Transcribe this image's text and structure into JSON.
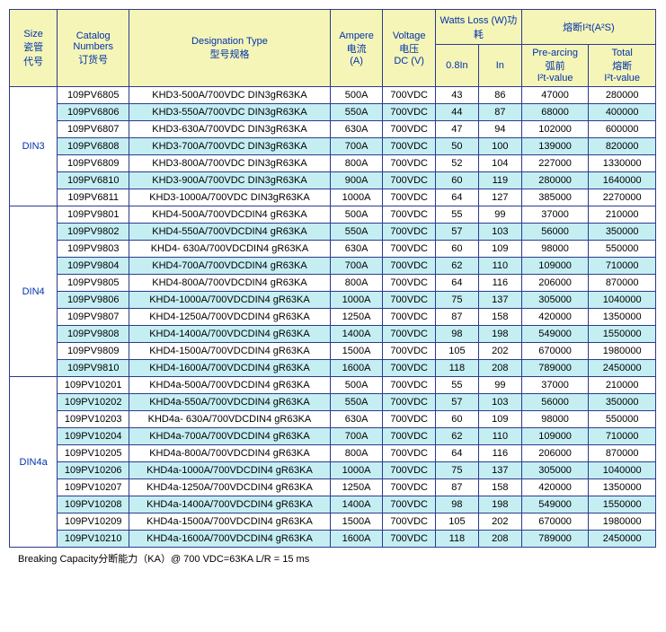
{
  "header": {
    "size": {
      "l1": "Size",
      "l2": "瓷管",
      "l3": "代号"
    },
    "catalog": {
      "l1": "Catalog",
      "l2": "Numbers",
      "l3": "订货号"
    },
    "designation": {
      "l1": "Designation Type",
      "l2": "型号规格"
    },
    "ampere": {
      "l1": "Ampere",
      "l2": "电流",
      "l3": "(A)"
    },
    "voltage": {
      "l1": "Voltage",
      "l2": "电压",
      "l3": "DC (V)"
    },
    "watts": {
      "group": "Watts Loss (W)功耗",
      "c1": "0.8In",
      "c2": "In"
    },
    "i2t": {
      "group": "熔断I²t(A²S)",
      "c1a": "Pre-arcing",
      "c1b": "弧前",
      "c1c": "I²t-value",
      "c2a": "Total",
      "c2b": "熔断",
      "c2c": "I²t-value"
    }
  },
  "groups": [
    {
      "size": "DIN3",
      "rows": [
        {
          "cat": "109PV6805",
          "des": "KHD3-500A/700VDC DIN3gR63KA",
          "amp": "500A",
          "volt": "700VDC",
          "w1": "43",
          "w2": "86",
          "i1": "47000",
          "i2": "280000"
        },
        {
          "cat": "109PV6806",
          "des": "KHD3-550A/700VDC DIN3gR63KA",
          "amp": "550A",
          "volt": "700VDC",
          "w1": "44",
          "w2": "87",
          "i1": "68000",
          "i2": "400000"
        },
        {
          "cat": "109PV6807",
          "des": "KHD3-630A/700VDC DIN3gR63KA",
          "amp": "630A",
          "volt": "700VDC",
          "w1": "47",
          "w2": "94",
          "i1": "102000",
          "i2": "600000"
        },
        {
          "cat": "109PV6808",
          "des": "KHD3-700A/700VDC DIN3gR63KA",
          "amp": "700A",
          "volt": "700VDC",
          "w1": "50",
          "w2": "100",
          "i1": "139000",
          "i2": "820000"
        },
        {
          "cat": "109PV6809",
          "des": "KHD3-800A/700VDC DIN3gR63KA",
          "amp": "800A",
          "volt": "700VDC",
          "w1": "52",
          "w2": "104",
          "i1": "227000",
          "i2": "1330000"
        },
        {
          "cat": "109PV6810",
          "des": "KHD3-900A/700VDC DIN3gR63KA",
          "amp": "900A",
          "volt": "700VDC",
          "w1": "60",
          "w2": "119",
          "i1": "280000",
          "i2": "1640000"
        },
        {
          "cat": "109PV6811",
          "des": "KHD3-1000A/700VDC DIN3gR63KA",
          "amp": "1000A",
          "volt": "700VDC",
          "w1": "64",
          "w2": "127",
          "i1": "385000",
          "i2": "2270000"
        }
      ]
    },
    {
      "size": "DIN4",
      "rows": [
        {
          "cat": "109PV9801",
          "des": "KHD4-500A/700VDCDIN4 gR63KA",
          "amp": "500A",
          "volt": "700VDC",
          "w1": "55",
          "w2": "99",
          "i1": "37000",
          "i2": "210000"
        },
        {
          "cat": "109PV9802",
          "des": "KHD4-550A/700VDCDIN4 gR63KA",
          "amp": "550A",
          "volt": "700VDC",
          "w1": "57",
          "w2": "103",
          "i1": "56000",
          "i2": "350000"
        },
        {
          "cat": "109PV9803",
          "des": "KHD4- 630A/700VDCDIN4 gR63KA",
          "amp": "630A",
          "volt": "700VDC",
          "w1": "60",
          "w2": "109",
          "i1": "98000",
          "i2": "550000"
        },
        {
          "cat": "109PV9804",
          "des": "KHD4-700A/700VDCDIN4 gR63KA",
          "amp": "700A",
          "volt": "700VDC",
          "w1": "62",
          "w2": "110",
          "i1": "109000",
          "i2": "710000"
        },
        {
          "cat": "109PV9805",
          "des": "KHD4-800A/700VDCDIN4 gR63KA",
          "amp": "800A",
          "volt": "700VDC",
          "w1": "64",
          "w2": "116",
          "i1": "206000",
          "i2": "870000"
        },
        {
          "cat": "109PV9806",
          "des": "KHD4-1000A/700VDCDIN4 gR63KA",
          "amp": "1000A",
          "volt": "700VDC",
          "w1": "75",
          "w2": "137",
          "i1": "305000",
          "i2": "1040000"
        },
        {
          "cat": "109PV9807",
          "des": "KHD4-1250A/700VDCDIN4 gR63KA",
          "amp": "1250A",
          "volt": "700VDC",
          "w1": "87",
          "w2": "158",
          "i1": "420000",
          "i2": "1350000"
        },
        {
          "cat": "109PV9808",
          "des": "KHD4-1400A/700VDCDIN4 gR63KA",
          "amp": "1400A",
          "volt": "700VDC",
          "w1": "98",
          "w2": "198",
          "i1": "549000",
          "i2": "1550000"
        },
        {
          "cat": "109PV9809",
          "des": "KHD4-1500A/700VDCDIN4 gR63KA",
          "amp": "1500A",
          "volt": "700VDC",
          "w1": "105",
          "w2": "202",
          "i1": "670000",
          "i2": "1980000"
        },
        {
          "cat": "109PV9810",
          "des": "KHD4-1600A/700VDCDIN4 gR63KA",
          "amp": "1600A",
          "volt": "700VDC",
          "w1": "118",
          "w2": "208",
          "i1": "789000",
          "i2": "2450000"
        }
      ]
    },
    {
      "size": "DIN4a",
      "rows": [
        {
          "cat": "109PV10201",
          "des": "KHD4a-500A/700VDCDIN4 gR63KA",
          "amp": "500A",
          "volt": "700VDC",
          "w1": "55",
          "w2": "99",
          "i1": "37000",
          "i2": "210000"
        },
        {
          "cat": "109PV10202",
          "des": "KHD4a-550A/700VDCDIN4 gR63KA",
          "amp": "550A",
          "volt": "700VDC",
          "w1": "57",
          "w2": "103",
          "i1": "56000",
          "i2": "350000"
        },
        {
          "cat": "109PV10203",
          "des": "KHD4a- 630A/700VDCDIN4 gR63KA",
          "amp": "630A",
          "volt": "700VDC",
          "w1": "60",
          "w2": "109",
          "i1": "98000",
          "i2": "550000"
        },
        {
          "cat": "109PV10204",
          "des": "KHD4a-700A/700VDCDIN4 gR63KA",
          "amp": "700A",
          "volt": "700VDC",
          "w1": "62",
          "w2": "110",
          "i1": "109000",
          "i2": "710000"
        },
        {
          "cat": "109PV10205",
          "des": "KHD4a-800A/700VDCDIN4 gR63KA",
          "amp": "800A",
          "volt": "700VDC",
          "w1": "64",
          "w2": "116",
          "i1": "206000",
          "i2": "870000"
        },
        {
          "cat": "109PV10206",
          "des": "KHD4a-1000A/700VDCDIN4 gR63KA",
          "amp": "1000A",
          "volt": "700VDC",
          "w1": "75",
          "w2": "137",
          "i1": "305000",
          "i2": "1040000"
        },
        {
          "cat": "109PV10207",
          "des": "KHD4a-1250A/700VDCDIN4 gR63KA",
          "amp": "1250A",
          "volt": "700VDC",
          "w1": "87",
          "w2": "158",
          "i1": "420000",
          "i2": "1350000"
        },
        {
          "cat": "109PV10208",
          "des": "KHD4a-1400A/700VDCDIN4 gR63KA",
          "amp": "1400A",
          "volt": "700VDC",
          "w1": "98",
          "w2": "198",
          "i1": "549000",
          "i2": "1550000"
        },
        {
          "cat": "109PV10209",
          "des": "KHD4a-1500A/700VDCDIN4 gR63KA",
          "amp": "1500A",
          "volt": "700VDC",
          "w1": "105",
          "w2": "202",
          "i1": "670000",
          "i2": "1980000"
        },
        {
          "cat": "109PV10210",
          "des": "KHD4a-1600A/700VDCDIN4 gR63KA",
          "amp": "1600A",
          "volt": "700VDC",
          "w1": "118",
          "w2": "208",
          "i1": "789000",
          "i2": "2450000"
        }
      ]
    }
  ],
  "footnote": "Breaking Capacity分断能力（KA）@ 700 VDC=63KA    L/R = 15 ms",
  "colors": {
    "header_bg": "#f5f5b8",
    "alt_row_bg": "#c5eef3",
    "border": "#2b3a8f",
    "header_text": "#0033aa"
  }
}
